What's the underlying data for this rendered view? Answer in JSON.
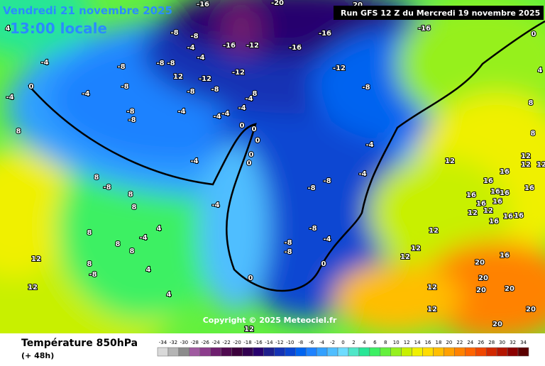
{
  "header": {
    "date": "Vendredi 21 novembre 2025",
    "time": "13:00 locale",
    "run": "Run GFS 12 Z du Mercredi 19 novembre 2025"
  },
  "map": {
    "copyright": "Copyright © 2025 Meteociel.fr",
    "labels": [
      4,
      -4,
      0,
      -4,
      -4,
      8,
      -8,
      -8,
      -8,
      -8,
      -8,
      -8,
      -8,
      -8,
      -4,
      -4,
      12,
      -12,
      -8,
      -8,
      -4,
      -16,
      -12,
      -12,
      -4,
      -4,
      -4,
      -4,
      8,
      0,
      0,
      0,
      0,
      0,
      -4,
      -16,
      -16,
      -12,
      -8,
      -16,
      20,
      0,
      4,
      8,
      8,
      12,
      12,
      12,
      12,
      16,
      16,
      16,
      16,
      16,
      12,
      16,
      16,
      16,
      12,
      16,
      16,
      16,
      -4,
      -4,
      -8,
      -8,
      -8,
      -4,
      -8,
      -8,
      0,
      0,
      8,
      -8,
      8,
      8,
      -4,
      4,
      -4,
      8,
      8,
      8,
      12,
      8,
      -8,
      4,
      4,
      12,
      12,
      12,
      12,
      12,
      12,
      16,
      20,
      20,
      20,
      20,
      20,
      20,
      12,
      -20,
      -16
    ]
  },
  "footer": {
    "title": "Température 850hPa",
    "subtitle": "(+ 48h)"
  },
  "scale": {
    "values": [
      -34,
      -32,
      -30,
      -28,
      -26,
      -24,
      -22,
      -20,
      -18,
      -16,
      -14,
      -12,
      -10,
      -8,
      -6,
      -4,
      -2,
      0,
      2,
      4,
      6,
      8,
      10,
      12,
      14,
      16,
      18,
      20,
      22,
      24,
      26,
      28,
      30,
      32,
      34
    ],
    "colors": [
      "#d9d9d9",
      "#b4b4b4",
      "#8c8c8c",
      "#a05aa0",
      "#8c3c8c",
      "#6e1e6e",
      "#500a50",
      "#3c003c",
      "#320050",
      "#28006e",
      "#1e1e8c",
      "#1432b4",
      "#0a46d2",
      "#0064f0",
      "#1e82ff",
      "#32a0ff",
      "#50beff",
      "#6edcff",
      "#50e6c8",
      "#28e696",
      "#3cf064",
      "#64f03c",
      "#96f01e",
      "#c8f000",
      "#f0f000",
      "#ffdc00",
      "#ffbe00",
      "#ffa000",
      "#ff8200",
      "#ff6400",
      "#f04600",
      "#d22800",
      "#b41400",
      "#8c0000",
      "#5a0000"
    ]
  }
}
